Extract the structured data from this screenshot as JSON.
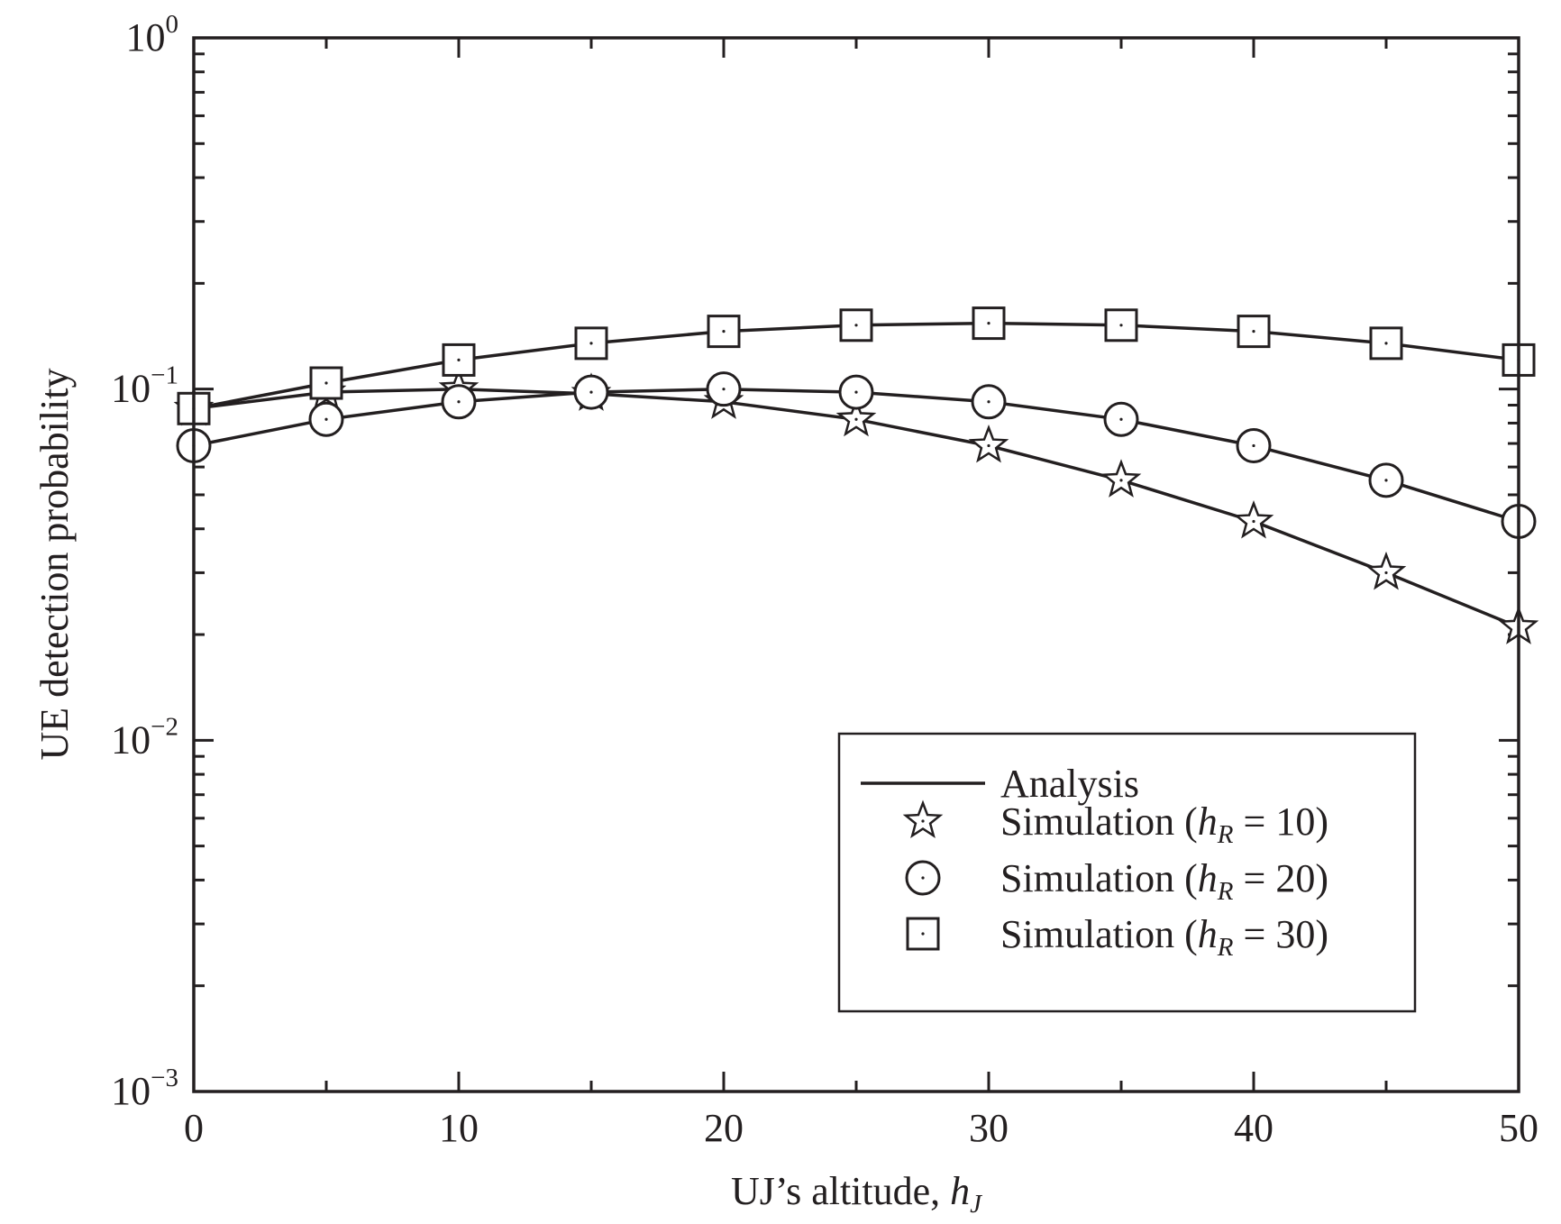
{
  "chart_data": {
    "type": "line",
    "xlabel": {
      "text": "UJ’s altitude, ",
      "var": "h",
      "sub": "J"
    },
    "ylabel": "UE detection probability",
    "xlim": [
      0,
      50
    ],
    "ylim": [
      0.001,
      1
    ],
    "yscale": "log",
    "x_ticks": [
      "0",
      "10",
      "20",
      "30",
      "40",
      "50"
    ],
    "y_ticks": [
      {
        "base": "10",
        "exp": "0"
      },
      {
        "base": "10",
        "exp": "−1"
      },
      {
        "base": "10",
        "exp": "−2"
      },
      {
        "base": "10",
        "exp": "−3"
      }
    ],
    "grid": false,
    "legend_position": "bottom-right",
    "legend": {
      "analysis": "Analysis",
      "items": [
        {
          "prefix": "Simulation (",
          "var": "h",
          "sub": "R",
          "suffix": " = 10)",
          "marker": "star"
        },
        {
          "prefix": "Simulation (",
          "var": "h",
          "sub": "R",
          "suffix": " = 20)",
          "marker": "circle"
        },
        {
          "prefix": "Simulation (",
          "var": "h",
          "sub": "R",
          "suffix": " = 30)",
          "marker": "square"
        }
      ]
    },
    "x": [
      0,
      5,
      10,
      15,
      20,
      25,
      30,
      35,
      40,
      45,
      50
    ],
    "series": [
      {
        "marker": "star",
        "values": [
          0.088,
          0.098,
          0.1,
          0.097,
          0.092,
          0.082,
          0.069,
          0.055,
          0.042,
          0.03,
          0.021
        ]
      },
      {
        "marker": "circle",
        "values": [
          0.069,
          0.082,
          0.092,
          0.098,
          0.1,
          0.098,
          0.092,
          0.082,
          0.069,
          0.055,
          0.042
        ]
      },
      {
        "marker": "square",
        "values": [
          0.088,
          0.104,
          0.121,
          0.135,
          0.146,
          0.152,
          0.154,
          0.152,
          0.146,
          0.135,
          0.121
        ]
      }
    ]
  }
}
